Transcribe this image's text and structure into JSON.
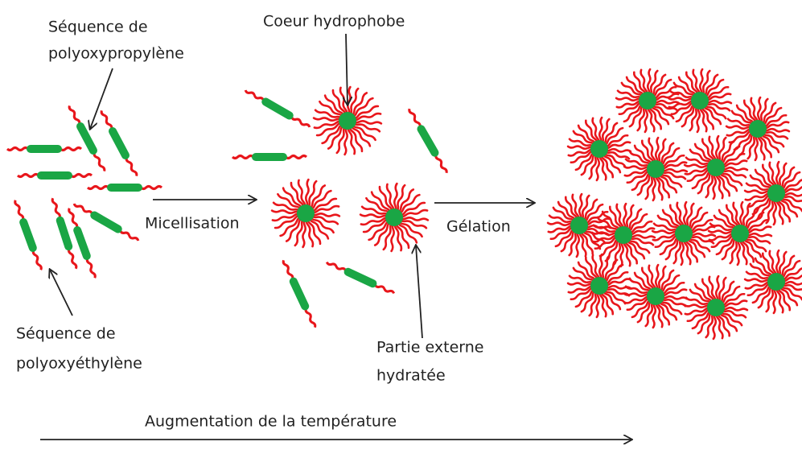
{
  "labels": {
    "ppo": [
      "Séquence de",
      "polyoxypropylène"
    ],
    "core": "Coeur hydrophobe",
    "micellisation": "Micellisation",
    "gelation": "Gélation",
    "peo": [
      "Séquence de",
      "polyoxyéthylène"
    ],
    "corona": [
      "Partie externe",
      "hydratée"
    ],
    "temperature": "Augmentation de la température"
  }
}
